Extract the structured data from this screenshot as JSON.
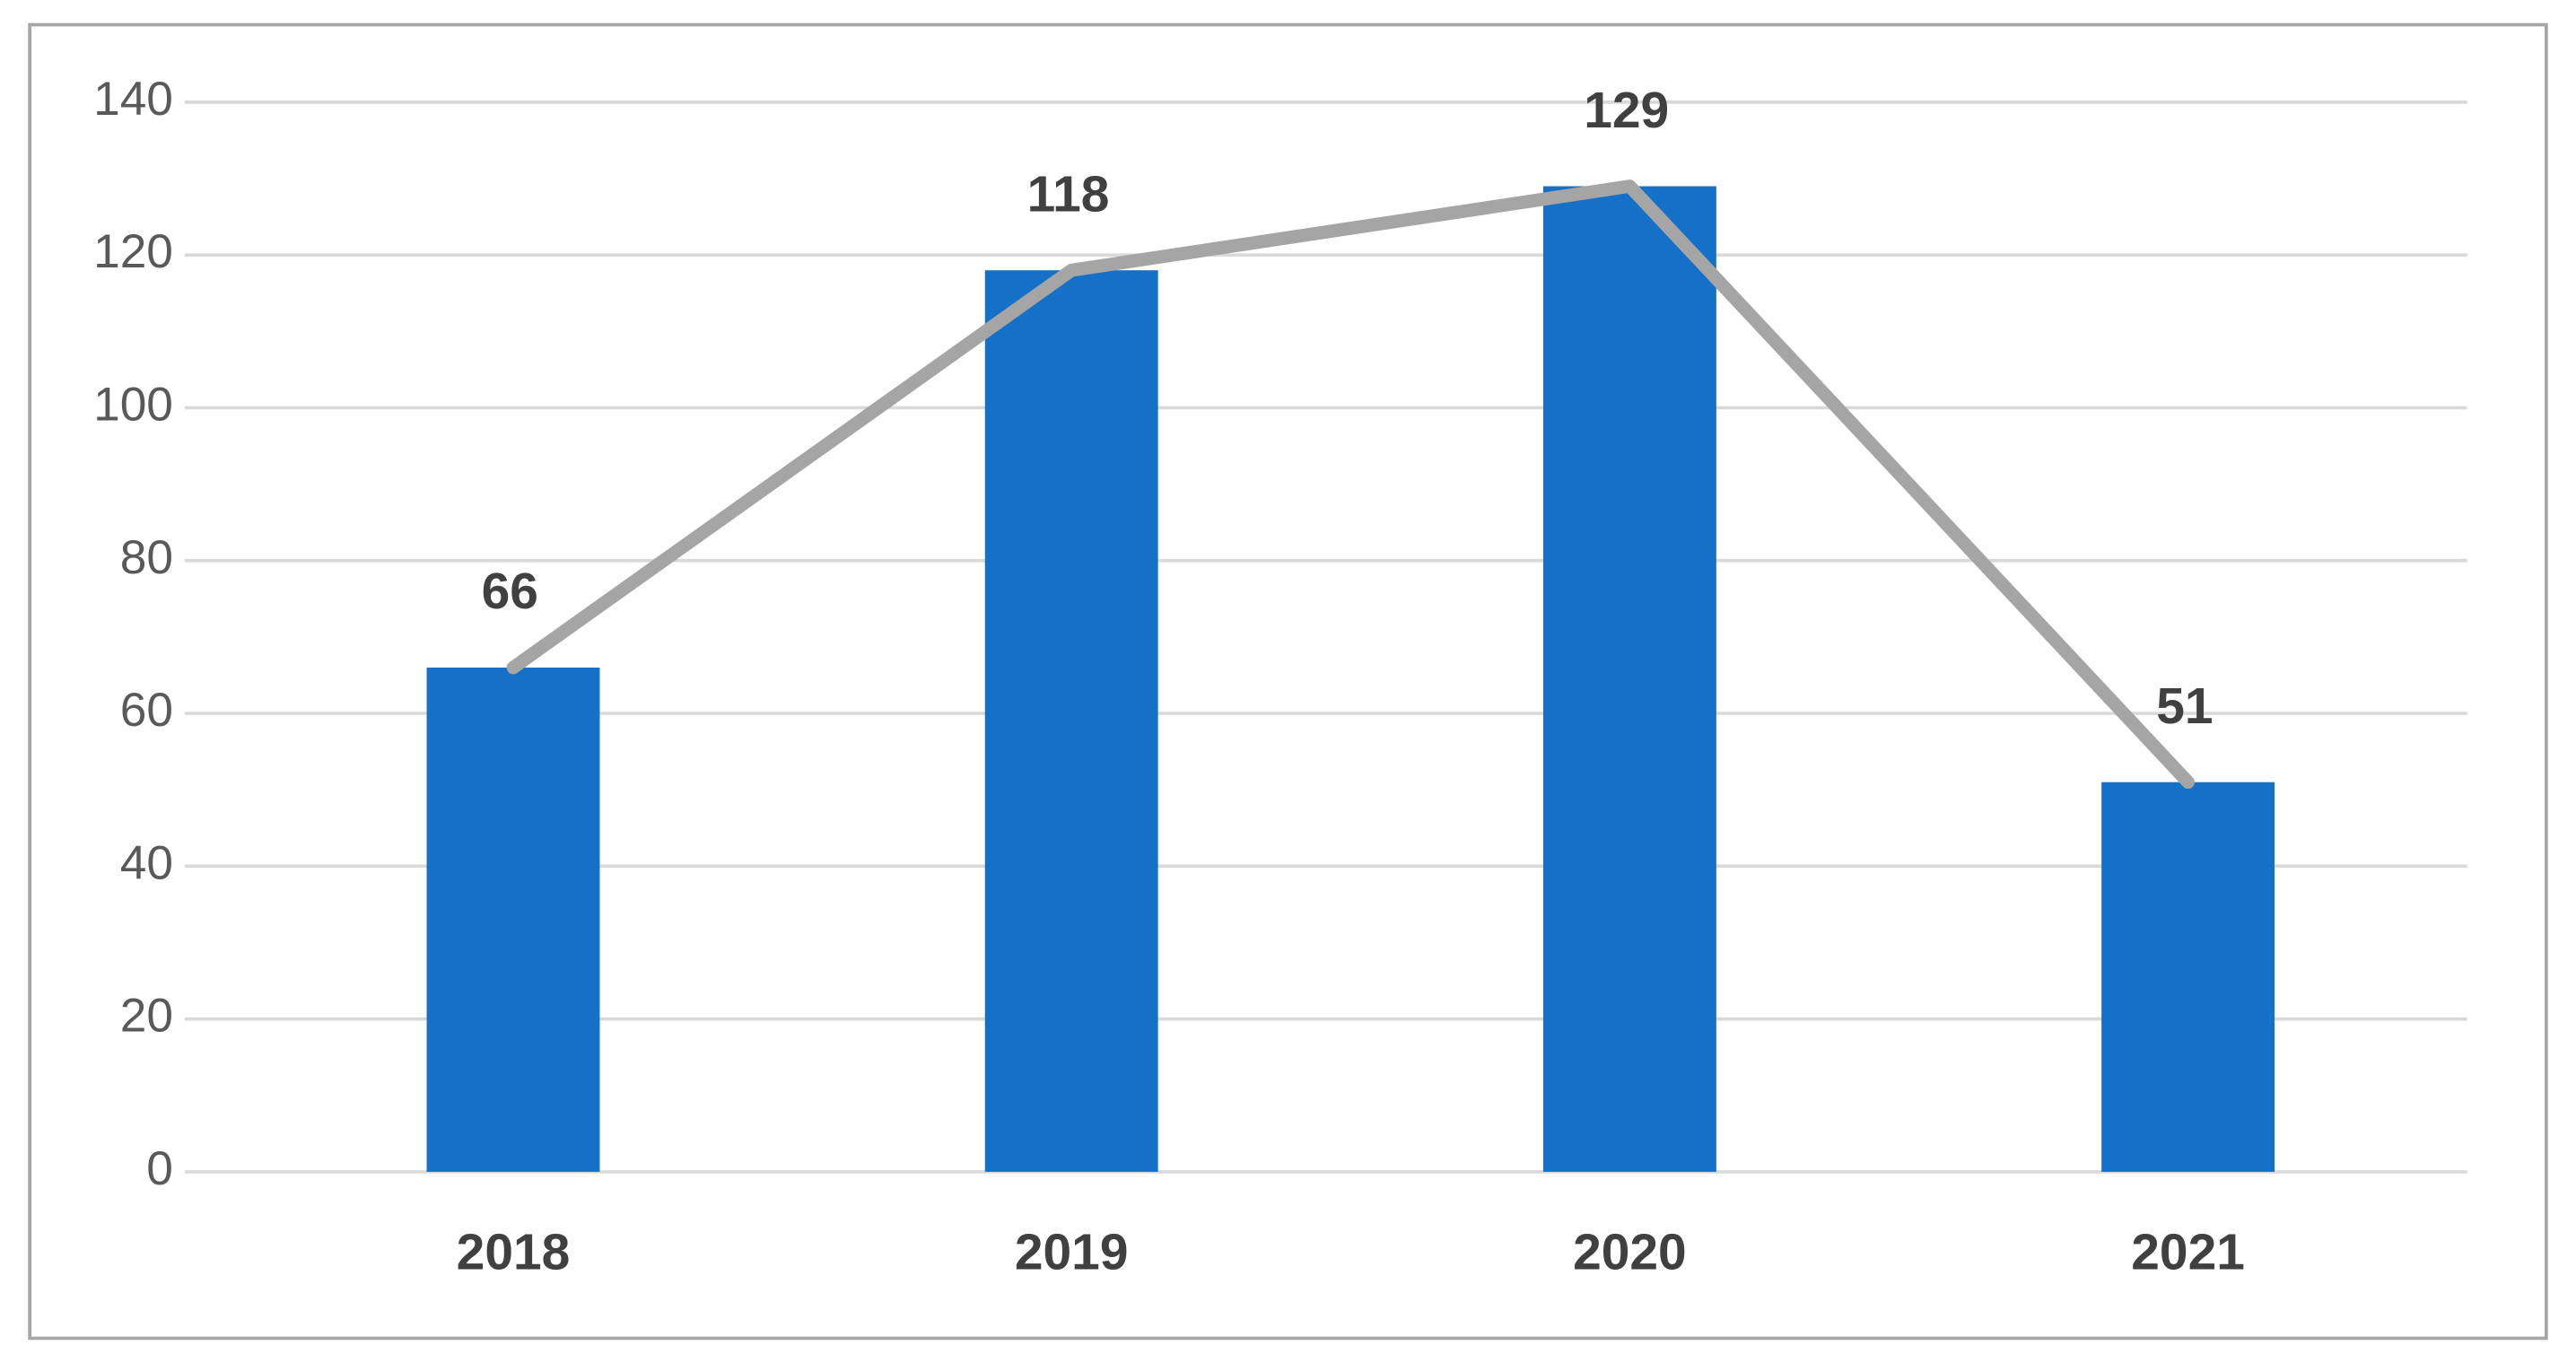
{
  "chart_data": {
    "type": "bar",
    "categories": [
      "2018",
      "2019",
      "2020",
      "2021"
    ],
    "values": [
      66,
      118,
      129,
      51
    ],
    "color": "#1570c8",
    "line_overlay": true,
    "line_color": "#a5a5a5",
    "ylim": [
      0,
      140
    ],
    "yticks": [
      0,
      20,
      40,
      60,
      80,
      100,
      120,
      140
    ],
    "grid": true
  }
}
